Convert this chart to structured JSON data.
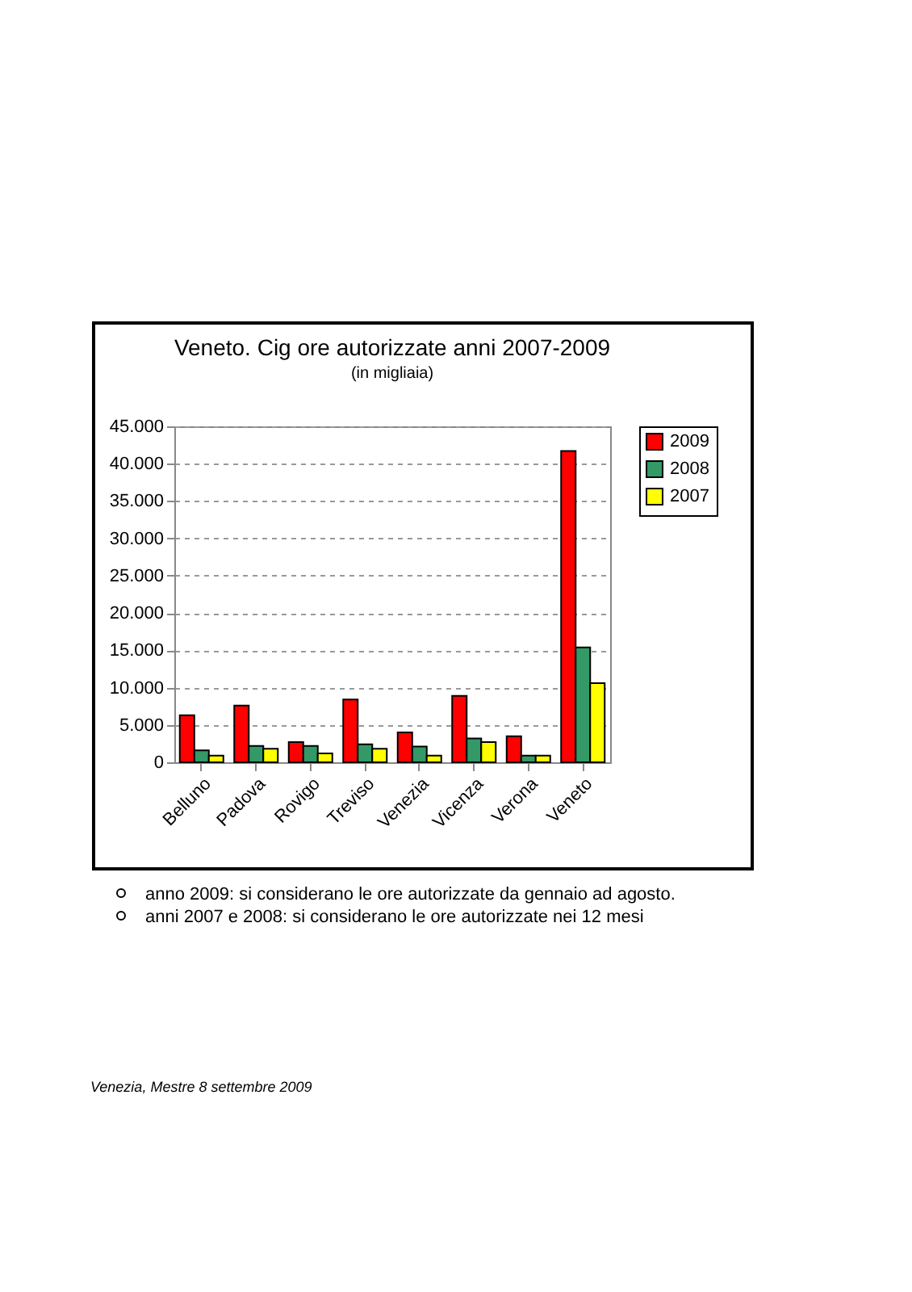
{
  "chart_data": {
    "type": "bar",
    "title": "Veneto. Cig ore autorizzate anni 2007-2009",
    "subtitle": "(in migliaia)",
    "categories": [
      "Belluno",
      "Padova",
      "Rovigo",
      "Treviso",
      "Venezia",
      "Vicenza",
      "Verona",
      "Veneto"
    ],
    "series": [
      {
        "name": "2009",
        "color": "#ff0000",
        "values": [
          6300,
          7600,
          2700,
          8400,
          4000,
          8900,
          3500,
          41700
        ]
      },
      {
        "name": "2008",
        "color": "#339966",
        "values": [
          1600,
          2200,
          2200,
          2400,
          2100,
          3200,
          900,
          15400
        ]
      },
      {
        "name": "2007",
        "color": "#ffff00",
        "values": [
          900,
          1800,
          1200,
          1800,
          900,
          2700,
          900,
          10600
        ]
      }
    ],
    "ylim": [
      0,
      45000
    ],
    "yticks": [
      {
        "value": 0,
        "label": "0"
      },
      {
        "value": 5000,
        "label": "5.000"
      },
      {
        "value": 10000,
        "label": "10.000"
      },
      {
        "value": 15000,
        "label": "15.000"
      },
      {
        "value": 20000,
        "label": "20.000"
      },
      {
        "value": 25000,
        "label": "25.000"
      },
      {
        "value": 30000,
        "label": "30.000"
      },
      {
        "value": 35000,
        "label": "35.000"
      },
      {
        "value": 40000,
        "label": "40.000"
      },
      {
        "value": 45000,
        "label": "45.000"
      }
    ],
    "grid": "y",
    "legend": "right",
    "annotations": [
      "anno 2009: si considerano le ore autorizzate da gennaio ad agosto.",
      "anni 2007 e 2008: si considerano le ore autorizzate nei 12 mesi",
      "Venezia, Mestre 8 settembre 2009"
    ]
  }
}
